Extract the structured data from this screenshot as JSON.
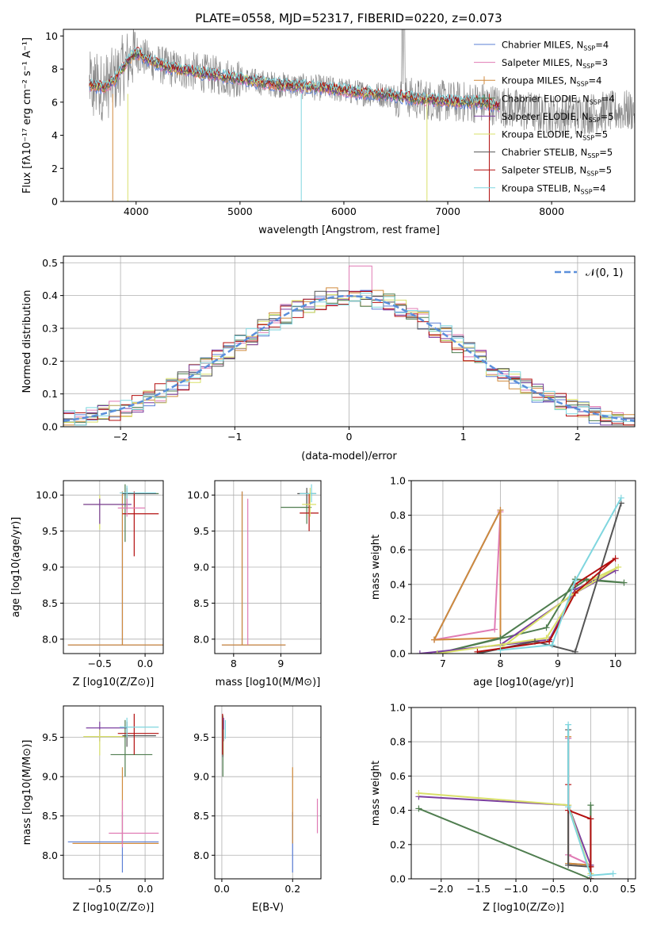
{
  "figure_title": "PLATE=0558, MJD=52317, FIBERID=0220, z=0.073",
  "colors": {
    "Chabrier MILES": "#5b7fd6",
    "Salpeter MILES": "#e07bb4",
    "Kroupa MILES": "#d08a3c",
    "Chabrier ELODIE": "#4f7d4f",
    "Salpeter ELODIE": "#7b3fa0",
    "Kroupa ELODIE": "#d9e06a",
    "Chabrier STELIB": "#555555",
    "Salpeter STELIB": "#b30f0f",
    "Kroupa STELIB": "#7fd6df",
    "data": "#888888",
    "normal_fit": "#5b8fdb"
  },
  "chart_data": [
    {
      "id": "spectrum",
      "type": "line",
      "title": "PLATE=0558, MJD=52317, FIBERID=0220, z=0.073",
      "xlabel": "wavelength [Angstrom, rest frame]",
      "ylabel": "Flux [fλ10⁻¹⁷ erg cm⁻² s⁻¹ A⁻¹]",
      "xlim": [
        3300,
        8800
      ],
      "ylim": [
        0,
        10.4
      ],
      "xticks": [
        "4000",
        "5000",
        "6000",
        "7000",
        "8000"
      ],
      "yticks": [
        "0",
        "2",
        "4",
        "6",
        "8",
        "10"
      ],
      "legend_position": "top-right",
      "legend": [
        {
          "label": "Chabrier MILES, N",
          "nssp": "4"
        },
        {
          "label": "Salpeter MILES, N",
          "nssp": "3"
        },
        {
          "label": "Kroupa MILES, N",
          "nssp": "4"
        },
        {
          "label": "Chabrier ELODIE, N",
          "nssp": "4"
        },
        {
          "label": "Salpeter ELODIE, N",
          "nssp": "5"
        },
        {
          "label": "Kroupa ELODIE, N",
          "nssp": "5"
        },
        {
          "label": "Chabrier STELIB, N",
          "nssp": "5"
        },
        {
          "label": "Salpeter STELIB, N",
          "nssp": "5"
        },
        {
          "label": "Kroupa STELIB, N",
          "nssp": "4"
        }
      ],
      "continuum": [
        [
          3550,
          7.0
        ],
        [
          3700,
          6.9
        ],
        [
          3800,
          7.4
        ],
        [
          3900,
          8.3
        ],
        [
          4000,
          9.0
        ],
        [
          4100,
          8.6
        ],
        [
          4300,
          8.1
        ],
        [
          4500,
          7.9
        ],
        [
          4700,
          7.7
        ],
        [
          4900,
          7.5
        ],
        [
          5100,
          7.3
        ],
        [
          5300,
          7.1
        ],
        [
          5500,
          7.0
        ],
        [
          5700,
          6.9
        ],
        [
          5900,
          6.8
        ],
        [
          6100,
          6.6
        ],
        [
          6300,
          6.5
        ],
        [
          6500,
          6.4
        ],
        [
          6700,
          6.2
        ],
        [
          6900,
          6.1
        ],
        [
          7100,
          6.0
        ],
        [
          7300,
          6.0
        ],
        [
          7500,
          5.8
        ],
        [
          7700,
          5.5
        ],
        [
          7900,
          5.3
        ],
        [
          8100,
          5.2
        ],
        [
          8300,
          5.3
        ],
        [
          8500,
          5.4
        ],
        [
          8800,
          5.5
        ]
      ]
    },
    {
      "id": "residual-histogram",
      "type": "line",
      "xlabel": "(data-model)/error",
      "ylabel": "Normed distribution",
      "xlim": [
        -2.5,
        2.5
      ],
      "ylim": [
        0,
        0.52
      ],
      "xticks": [
        "−2",
        "−1",
        "0",
        "1",
        "2"
      ],
      "yticks": [
        "0.0",
        "0.1",
        "0.2",
        "0.3",
        "0.4",
        "0.5"
      ],
      "grid": true,
      "legend": [
        {
          "label": "𝒩(0, 1)"
        }
      ],
      "legend_position": "top-right",
      "hist_bins": 50,
      "spike_bin_x": 0.1,
      "spike_value": 0.49
    },
    {
      "id": "age-vs-Z",
      "type": "scatter",
      "xlabel": "Z [log10(Z/Z⊙)]",
      "ylabel": "age [log10(age/yr)]",
      "xlim": [
        -0.9,
        0.2
      ],
      "ylim": [
        7.8,
        10.2
      ],
      "xticks": [
        "−0.5",
        "0.0"
      ],
      "yticks": [
        "8.0",
        "8.5",
        "9.0",
        "9.5",
        "10.0"
      ],
      "grid": true
    },
    {
      "id": "age-vs-mass",
      "type": "scatter",
      "xlabel": "mass [log10(M/M⊙)]",
      "ylabel": "",
      "xlim": [
        7.6,
        9.85
      ],
      "ylim": [
        7.8,
        10.2
      ],
      "xticks": [
        "8",
        "9"
      ],
      "yticks": [
        "8.0",
        "8.5",
        "9.0",
        "9.5",
        "10.0"
      ],
      "grid": true
    },
    {
      "id": "massweight-vs-age",
      "type": "line",
      "xlabel": "age [log10(age/yr)]",
      "ylabel": "mass weight",
      "xlim": [
        6.45,
        10.35
      ],
      "ylim": [
        0,
        1
      ],
      "xticks": [
        "7",
        "8",
        "9",
        "10"
      ],
      "yticks": [
        "0.0",
        "0.2",
        "0.4",
        "0.6",
        "0.8",
        "1.0"
      ],
      "grid": true,
      "series": [
        {
          "name": "Chabrier MILES",
          "x": [
            6.85,
            8.0,
            8.0
          ],
          "y": [
            0.08,
            0.83,
            0.09
          ]
        },
        {
          "name": "Salpeter MILES",
          "x": [
            6.85,
            7.9,
            8.0
          ],
          "y": [
            0.08,
            0.14,
            0.82
          ]
        },
        {
          "name": "Kroupa MILES",
          "x": [
            6.85,
            8.0,
            8.0,
            6.85
          ],
          "y": [
            0.08,
            0.83,
            0.09,
            0.08
          ]
        },
        {
          "name": "Chabrier ELODIE",
          "x": [
            6.9,
            8.8,
            9.3,
            10.15,
            9.5,
            8.0,
            6.9
          ],
          "y": [
            0.0,
            0.15,
            0.43,
            0.41,
            0.43,
            0.09,
            0.0
          ]
        },
        {
          "name": "Salpeter ELODIE",
          "x": [
            6.6,
            8.85,
            9.3,
            10.0,
            9.3,
            8.0
          ],
          "y": [
            0.0,
            0.08,
            0.37,
            0.48,
            0.35,
            0.05
          ]
        },
        {
          "name": "Kroupa ELODIE",
          "x": [
            6.9,
            8.8,
            9.3,
            10.05,
            9.6,
            8.0
          ],
          "y": [
            0.0,
            0.09,
            0.35,
            0.5,
            0.43,
            0.03
          ]
        },
        {
          "name": "Chabrier STELIB",
          "x": [
            7.6,
            8.6,
            9.3,
            10.1
          ],
          "y": [
            0.0,
            0.07,
            0.01,
            0.87
          ]
        },
        {
          "name": "Salpeter STELIB",
          "x": [
            7.6,
            8.85,
            9.3,
            10.0,
            9.3
          ],
          "y": [
            0.01,
            0.07,
            0.35,
            0.55,
            0.4
          ]
        },
        {
          "name": "Kroupa STELIB",
          "x": [
            8.0,
            8.9,
            9.3,
            10.1
          ],
          "y": [
            0.02,
            0.05,
            0.42,
            0.9
          ]
        }
      ]
    },
    {
      "id": "mass-vs-Z",
      "type": "scatter",
      "xlabel": "Z [log10(Z/Z⊙)]",
      "ylabel": "mass [log10(M/M⊙)]",
      "xlim": [
        -0.9,
        0.2
      ],
      "ylim": [
        7.7,
        9.9
      ],
      "xticks": [
        "−0.5",
        "0.0"
      ],
      "yticks": [
        "8.0",
        "8.5",
        "9.0",
        "9.5"
      ],
      "grid": true
    },
    {
      "id": "mass-vs-EBV",
      "type": "scatter",
      "xlabel": "E(B-V)",
      "ylabel": "",
      "xlim": [
        -0.02,
        0.28
      ],
      "ylim": [
        7.7,
        9.9
      ],
      "xticks": [
        "0.0",
        "0.2"
      ],
      "yticks": [
        "8.0",
        "8.5",
        "9.0",
        "9.5"
      ],
      "grid": true
    },
    {
      "id": "massweight-vs-Z",
      "type": "line",
      "xlabel": "Z [log10(Z/Z⊙)]",
      "ylabel": "mass weight",
      "xlim": [
        -2.4,
        0.6
      ],
      "ylim": [
        0,
        1
      ],
      "xticks": [
        "−2.0",
        "−1.5",
        "−1.0",
        "−0.5",
        "0.0",
        "0.5"
      ],
      "yticks": [
        "0.0",
        "0.2",
        "0.4",
        "0.6",
        "0.8",
        "1.0"
      ],
      "grid": true,
      "series": [
        {
          "name": "Chabrier MILES",
          "x": [
            -0.3,
            -0.3,
            0.0,
            0.0
          ],
          "y": [
            0.82,
            0.09,
            0.08,
            0.0
          ]
        },
        {
          "name": "Salpeter MILES",
          "x": [
            -0.3,
            -0.3,
            0.0
          ],
          "y": [
            0.82,
            0.14,
            0.08
          ]
        },
        {
          "name": "Kroupa MILES",
          "x": [
            -0.3,
            -0.3,
            0.0,
            0.0
          ],
          "y": [
            0.83,
            0.09,
            0.08,
            0.0
          ]
        },
        {
          "name": "Chabrier ELODIE",
          "x": [
            -2.3,
            0.0,
            0.0
          ],
          "y": [
            0.41,
            0.0,
            0.43
          ]
        },
        {
          "name": "Salpeter ELODIE",
          "x": [
            -2.3,
            -0.3,
            0.0,
            0.0
          ],
          "y": [
            0.48,
            0.43,
            0.08,
            0.0
          ]
        },
        {
          "name": "Kroupa ELODIE",
          "x": [
            -2.3,
            -0.3,
            0.0,
            0.0
          ],
          "y": [
            0.5,
            0.43,
            0.03,
            0.0
          ]
        },
        {
          "name": "Chabrier STELIB",
          "x": [
            -0.3,
            -0.3,
            0.0,
            0.0
          ],
          "y": [
            0.87,
            0.08,
            0.07,
            0.0
          ]
        },
        {
          "name": "Salpeter STELIB",
          "x": [
            -0.3,
            -0.3,
            0.0,
            0.0,
            0.0
          ],
          "y": [
            0.55,
            0.4,
            0.35,
            0.07,
            0.0
          ]
        },
        {
          "name": "Kroupa STELIB",
          "x": [
            -0.3,
            -0.3,
            0.0,
            0.3
          ],
          "y": [
            0.9,
            0.42,
            0.02,
            0.03
          ]
        }
      ]
    }
  ]
}
